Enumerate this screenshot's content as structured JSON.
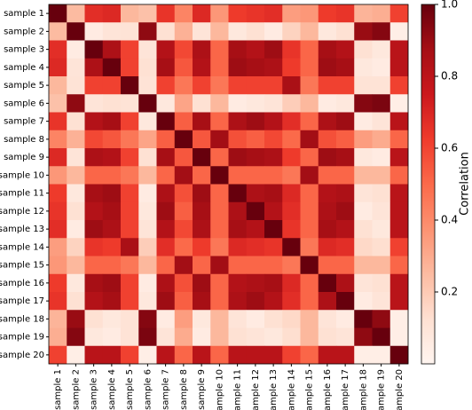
{
  "chart_data": {
    "type": "heatmap",
    "categories": [
      "sample 1",
      "sample 2",
      "sample 3",
      "sample 4",
      "sample 5",
      "sample 6",
      "sample 7",
      "sample 8",
      "sample 9",
      "sample 10",
      "sample 11",
      "sample 12",
      "sample 13",
      "sample 14",
      "sample 15",
      "sample 16",
      "sample 17",
      "sample 18",
      "sample 19",
      "sample 20"
    ],
    "values": [
      [
        1,
        0.25,
        0.67,
        0.69,
        0.26,
        0.23,
        0.65,
        0.42,
        0.69,
        0.36,
        0.63,
        0.65,
        0.67,
        0.34,
        0.36,
        0.63,
        0.65,
        0.27,
        0.29,
        0.61
      ],
      [
        0.25,
        1,
        0.06,
        0.1,
        0.11,
        0.92,
        0.12,
        0.28,
        0.1,
        0.26,
        0.08,
        0.12,
        0.06,
        0.17,
        0.26,
        0.08,
        0.12,
        0.9,
        0.94,
        0.04
      ],
      [
        0.67,
        0.06,
        1,
        0.85,
        0.61,
        0.1,
        0.83,
        0.59,
        0.85,
        0.51,
        0.87,
        0.83,
        0.89,
        0.65,
        0.51,
        0.87,
        0.83,
        0.12,
        0.08,
        0.81
      ],
      [
        0.69,
        0.1,
        0.85,
        1,
        0.61,
        0.12,
        0.87,
        0.55,
        0.83,
        0.51,
        0.89,
        0.87,
        0.85,
        0.63,
        0.51,
        0.89,
        0.87,
        0.08,
        0.06,
        0.81
      ],
      [
        0.26,
        0.11,
        0.61,
        0.61,
        1,
        0.11,
        0.61,
        0.46,
        0.61,
        0.46,
        0.61,
        0.61,
        0.61,
        0.86,
        0.46,
        0.61,
        0.61,
        0.11,
        0.11,
        0.61
      ],
      [
        0.23,
        0.92,
        0.1,
        0.12,
        0.11,
        1,
        0.08,
        0.32,
        0.12,
        0.26,
        0.06,
        0.08,
        0.1,
        0.19,
        0.26,
        0.06,
        0.08,
        0.94,
        0.96,
        0.04
      ],
      [
        0.65,
        0.12,
        0.83,
        0.87,
        0.61,
        0.08,
        1,
        0.53,
        0.87,
        0.51,
        0.85,
        0.89,
        0.83,
        0.67,
        0.51,
        0.85,
        0.89,
        0.06,
        0.1,
        0.81
      ],
      [
        0.42,
        0.28,
        0.59,
        0.55,
        0.46,
        0.32,
        0.53,
        1,
        0.55,
        0.88,
        0.57,
        0.53,
        0.59,
        0.5,
        0.88,
        0.57,
        0.53,
        0.34,
        0.3,
        0.51
      ],
      [
        0.69,
        0.1,
        0.85,
        0.83,
        0.61,
        0.12,
        0.87,
        0.55,
        1,
        0.51,
        0.89,
        0.87,
        0.85,
        0.63,
        0.51,
        0.89,
        0.87,
        0.08,
        0.06,
        0.81
      ],
      [
        0.36,
        0.26,
        0.51,
        0.51,
        0.46,
        0.26,
        0.51,
        0.88,
        0.51,
        1,
        0.51,
        0.51,
        0.51,
        0.46,
        0.88,
        0.51,
        0.51,
        0.26,
        0.26,
        0.51
      ],
      [
        0.63,
        0.08,
        0.87,
        0.89,
        0.61,
        0.06,
        0.85,
        0.57,
        0.89,
        0.51,
        1,
        0.85,
        0.87,
        0.69,
        0.51,
        0.83,
        0.85,
        0.1,
        0.12,
        0.81
      ],
      [
        0.65,
        0.12,
        0.83,
        0.87,
        0.61,
        0.08,
        0.89,
        0.53,
        0.87,
        0.51,
        0.85,
        1,
        0.83,
        0.67,
        0.51,
        0.85,
        0.89,
        0.06,
        0.1,
        0.81
      ],
      [
        0.67,
        0.06,
        0.89,
        0.85,
        0.61,
        0.1,
        0.83,
        0.59,
        0.85,
        0.51,
        0.87,
        0.83,
        1,
        0.65,
        0.51,
        0.87,
        0.83,
        0.12,
        0.08,
        0.81
      ],
      [
        0.34,
        0.17,
        0.65,
        0.63,
        0.86,
        0.19,
        0.67,
        0.5,
        0.63,
        0.46,
        0.69,
        0.67,
        0.65,
        1,
        0.46,
        0.69,
        0.67,
        0.15,
        0.13,
        0.61
      ],
      [
        0.36,
        0.26,
        0.51,
        0.51,
        0.46,
        0.26,
        0.51,
        0.88,
        0.51,
        0.88,
        0.51,
        0.51,
        0.51,
        0.46,
        1,
        0.51,
        0.51,
        0.26,
        0.26,
        0.51
      ],
      [
        0.63,
        0.08,
        0.87,
        0.89,
        0.61,
        0.06,
        0.85,
        0.57,
        0.89,
        0.51,
        0.83,
        0.85,
        0.87,
        0.69,
        0.51,
        1,
        0.85,
        0.1,
        0.12,
        0.81
      ],
      [
        0.65,
        0.12,
        0.83,
        0.87,
        0.61,
        0.08,
        0.89,
        0.53,
        0.87,
        0.51,
        0.85,
        0.89,
        0.83,
        0.67,
        0.51,
        0.85,
        1,
        0.06,
        0.1,
        0.81
      ],
      [
        0.27,
        0.9,
        0.12,
        0.08,
        0.11,
        0.94,
        0.06,
        0.34,
        0.08,
        0.26,
        0.1,
        0.06,
        0.12,
        0.15,
        0.26,
        0.1,
        0.06,
        1,
        0.92,
        0.04
      ],
      [
        0.29,
        0.94,
        0.08,
        0.06,
        0.11,
        0.96,
        0.1,
        0.3,
        0.06,
        0.26,
        0.12,
        0.1,
        0.08,
        0.13,
        0.26,
        0.12,
        0.1,
        0.92,
        1,
        0.04
      ],
      [
        0.61,
        0.04,
        0.81,
        0.81,
        0.61,
        0.04,
        0.81,
        0.51,
        0.81,
        0.51,
        0.81,
        0.81,
        0.81,
        0.61,
        0.51,
        0.81,
        0.81,
        0.04,
        0.04,
        1
      ]
    ],
    "colormap": [
      "#fff5f0",
      "#fee0d2",
      "#fcbba1",
      "#fc9272",
      "#fb6a4a",
      "#ef3b2c",
      "#cb181d",
      "#a50f15",
      "#67000d"
    ],
    "zlim": [
      0,
      1
    ],
    "colorbar_label": "Correlation",
    "colorbar_ticks": [
      0.2,
      0.4,
      0.6,
      0.8,
      {
        "value": 1,
        "label": "1.0"
      }
    ]
  }
}
